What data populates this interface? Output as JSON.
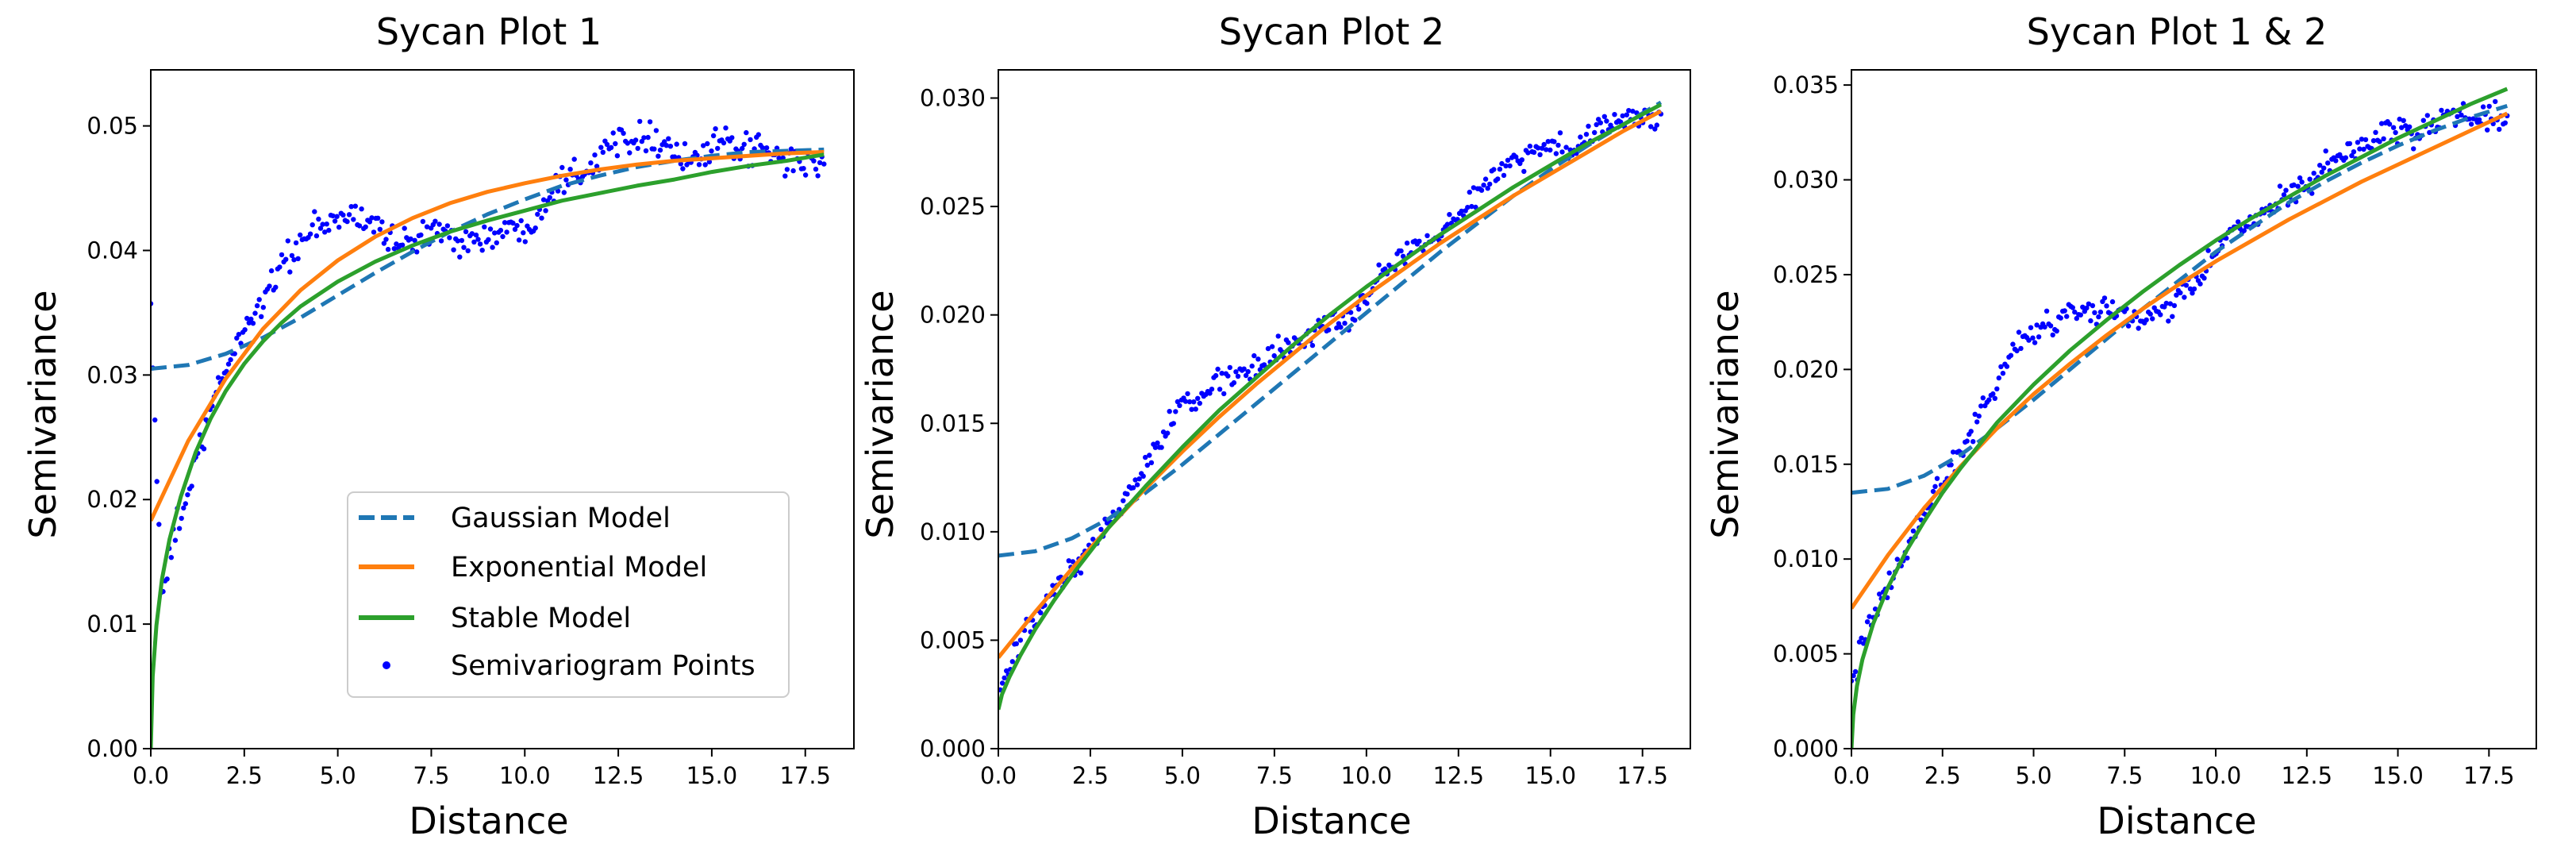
{
  "chart_data": [
    {
      "type": "line",
      "title": "Sycan Plot 1",
      "xlabel": "Distance",
      "ylabel": "Semivariance",
      "xlim": [
        0,
        18.8
      ],
      "ylim": [
        0,
        0.0545
      ],
      "xticks": [
        "0.0",
        "2.5",
        "5.0",
        "7.5",
        "10.0",
        "12.5",
        "15.0",
        "17.5"
      ],
      "xtick_values": [
        0,
        2.5,
        5,
        7.5,
        10,
        12.5,
        15,
        17.5
      ],
      "yticks": [
        "0.00",
        "0.01",
        "0.02",
        "0.03",
        "0.04",
        "0.05"
      ],
      "ytick_values": [
        0,
        0.01,
        0.02,
        0.03,
        0.04,
        0.05
      ],
      "grid": false,
      "legend": {
        "placement": "lower-right",
        "entries": [
          {
            "label": "Gaussian Model",
            "series": "gaussian",
            "style": "dashed",
            "color": "#1f77b4"
          },
          {
            "label": "Exponential Model",
            "series": "exponential",
            "style": "solid",
            "color": "#ff7f0e"
          },
          {
            "label": "Stable Model",
            "series": "stable",
            "style": "solid",
            "color": "#2ca02c"
          },
          {
            "label": "Semivariogram Points",
            "series": "points",
            "style": "dots",
            "color": "#0000ff"
          }
        ]
      },
      "series": [
        {
          "key": "gaussian",
          "name": "Gaussian Model",
          "style": "dashed",
          "color": "#1f77b4",
          "x": [
            0,
            1,
            2,
            3,
            4,
            5,
            6,
            7,
            8,
            9,
            10,
            11,
            12,
            13,
            14,
            15,
            16,
            17,
            18
          ],
          "y": [
            0.0305,
            0.0308,
            0.0317,
            0.033,
            0.0346,
            0.0364,
            0.0382,
            0.0399,
            0.0415,
            0.0429,
            0.0441,
            0.0452,
            0.046,
            0.0467,
            0.0472,
            0.0476,
            0.0479,
            0.048,
            0.0481
          ]
        },
        {
          "key": "exponential",
          "name": "Exponential Model",
          "style": "solid",
          "color": "#ff7f0e",
          "x": [
            0,
            1,
            2,
            3,
            4,
            5,
            6,
            7,
            8,
            9,
            10,
            11,
            12,
            13,
            14,
            15,
            16,
            17,
            18
          ],
          "y": [
            0.0183,
            0.0247,
            0.0297,
            0.0337,
            0.0368,
            0.0392,
            0.0411,
            0.0426,
            0.0438,
            0.0447,
            0.0454,
            0.046,
            0.0465,
            0.0469,
            0.0472,
            0.0474,
            0.0476,
            0.0478,
            0.0479
          ]
        },
        {
          "key": "stable",
          "name": "Stable Model",
          "style": "solid",
          "color": "#2ca02c",
          "x": [
            0,
            0.05,
            0.15,
            0.3,
            0.5,
            0.8,
            1.2,
            1.6,
            2,
            2.5,
            3,
            3.5,
            4,
            5,
            6,
            7,
            8,
            9,
            10,
            11,
            12,
            13,
            14,
            15,
            16,
            17,
            18
          ],
          "y": [
            0,
            0.0058,
            0.0099,
            0.0136,
            0.0168,
            0.0202,
            0.0238,
            0.0265,
            0.0287,
            0.0309,
            0.0327,
            0.0342,
            0.0355,
            0.0375,
            0.0391,
            0.0404,
            0.0415,
            0.0424,
            0.0432,
            0.044,
            0.0446,
            0.0452,
            0.0457,
            0.0463,
            0.0468,
            0.0472,
            0.0477
          ]
        },
        {
          "key": "points",
          "name": "Semivariogram Points",
          "style": "dots",
          "color": "#0000ff",
          "anchors_x": [
            0,
            0.3,
            0.6,
            1,
            1.5,
            2,
            2.5,
            3,
            3.5,
            4,
            4.5,
            5,
            5.5,
            6,
            6.5,
            7,
            7.5,
            8,
            8.5,
            9,
            9.5,
            10,
            10.5,
            11,
            11.5,
            12,
            12.5,
            13,
            13.5,
            14,
            14.5,
            15,
            15.5,
            16,
            16.5,
            17,
            17.5,
            18
          ],
          "anchors_y": [
            0.0355,
            0.011,
            0.017,
            0.0205,
            0.026,
            0.0305,
            0.0338,
            0.036,
            0.039,
            0.0405,
            0.0418,
            0.0425,
            0.0428,
            0.042,
            0.041,
            0.0405,
            0.0415,
            0.0413,
            0.0408,
            0.041,
            0.0415,
            0.0418,
            0.0438,
            0.046,
            0.0465,
            0.0475,
            0.049,
            0.0495,
            0.049,
            0.048,
            0.047,
            0.0482,
            0.0485,
            0.048,
            0.0478,
            0.047,
            0.0472,
            0.0465
          ],
          "count": 330,
          "spread": 0.0011
        }
      ]
    },
    {
      "type": "line",
      "title": "Sycan Plot 2",
      "xlabel": "Distance",
      "ylabel": "Semivariance",
      "xlim": [
        0,
        18.8
      ],
      "ylim": [
        0,
        0.0313
      ],
      "xticks": [
        "0.0",
        "2.5",
        "5.0",
        "7.5",
        "10.0",
        "12.5",
        "15.0",
        "17.5"
      ],
      "xtick_values": [
        0,
        2.5,
        5,
        7.5,
        10,
        12.5,
        15,
        17.5
      ],
      "yticks": [
        "0.000",
        "0.005",
        "0.010",
        "0.015",
        "0.020",
        "0.025",
        "0.030"
      ],
      "ytick_values": [
        0,
        0.005,
        0.01,
        0.015,
        0.02,
        0.025,
        0.03
      ],
      "grid": false,
      "series": [
        {
          "key": "gaussian",
          "name": "Gaussian Model",
          "style": "dashed",
          "color": "#1f77b4",
          "x": [
            0,
            1,
            2,
            3,
            4,
            5,
            6,
            7,
            8,
            9,
            10,
            11,
            12,
            13,
            14,
            15,
            16,
            17,
            18
          ],
          "y": [
            0.0089,
            0.0091,
            0.0097,
            0.0106,
            0.0118,
            0.0131,
            0.0145,
            0.0159,
            0.0173,
            0.0187,
            0.0201,
            0.0215,
            0.0229,
            0.0242,
            0.0255,
            0.0267,
            0.0278,
            0.0288,
            0.0298
          ]
        },
        {
          "key": "exponential",
          "name": "Exponential Model",
          "style": "solid",
          "color": "#ff7f0e",
          "x": [
            0,
            1,
            2,
            3,
            4,
            5,
            6,
            7,
            8,
            9,
            10,
            11,
            12,
            13,
            14,
            15,
            16,
            17,
            18
          ],
          "y": [
            0.0042,
            0.0063,
            0.0083,
            0.0102,
            0.012,
            0.0137,
            0.0153,
            0.0168,
            0.0182,
            0.0196,
            0.0209,
            0.0221,
            0.0233,
            0.0244,
            0.0255,
            0.0265,
            0.0275,
            0.0285,
            0.0294
          ]
        },
        {
          "key": "stable",
          "name": "Stable Model",
          "style": "solid",
          "color": "#2ca02c",
          "x": [
            0,
            0.1,
            0.3,
            0.6,
            1,
            1.5,
            2,
            3,
            4,
            5,
            6,
            7,
            8,
            9,
            10,
            11,
            12,
            13,
            14,
            15,
            16,
            17,
            18
          ],
          "y": [
            0.0018,
            0.0025,
            0.0033,
            0.0043,
            0.0055,
            0.0068,
            0.008,
            0.0102,
            0.0121,
            0.0139,
            0.0156,
            0.0171,
            0.0186,
            0.02,
            0.0213,
            0.0225,
            0.0237,
            0.0248,
            0.0259,
            0.0269,
            0.0279,
            0.0288,
            0.0297
          ]
        },
        {
          "key": "points",
          "name": "Semivariogram Points",
          "style": "dots",
          "color": "#0000ff",
          "anchors_x": [
            0,
            0.5,
            1,
            1.5,
            2,
            2.5,
            3,
            3.5,
            4,
            4.5,
            5,
            5.5,
            6,
            6.5,
            7,
            7.5,
            8,
            8.5,
            9,
            9.5,
            10,
            10.5,
            11,
            11.5,
            12,
            12.5,
            13,
            13.5,
            14,
            14.5,
            15,
            15.5,
            16,
            16.5,
            17,
            17.5,
            18
          ],
          "anchors_y": [
            0.0025,
            0.0045,
            0.006,
            0.0072,
            0.0082,
            0.009,
            0.0105,
            0.0117,
            0.013,
            0.0145,
            0.0158,
            0.0163,
            0.017,
            0.0172,
            0.0176,
            0.0182,
            0.0185,
            0.0192,
            0.0196,
            0.0198,
            0.0208,
            0.022,
            0.0228,
            0.0232,
            0.0238,
            0.0247,
            0.0255,
            0.0265,
            0.0272,
            0.0275,
            0.0278,
            0.0276,
            0.0283,
            0.0288,
            0.029,
            0.0292,
            0.0289
          ],
          "count": 330,
          "spread": 0.0005
        }
      ]
    },
    {
      "type": "line",
      "title": "Sycan Plot 1 & 2",
      "xlabel": "Distance",
      "ylabel": "Semivariance",
      "xlim": [
        0,
        18.8
      ],
      "ylim": [
        0,
        0.0358
      ],
      "xticks": [
        "0.0",
        "2.5",
        "5.0",
        "7.5",
        "10.0",
        "12.5",
        "15.0",
        "17.5"
      ],
      "xtick_values": [
        0,
        2.5,
        5,
        7.5,
        10,
        12.5,
        15,
        17.5
      ],
      "yticks": [
        "0.000",
        "0.005",
        "0.010",
        "0.015",
        "0.020",
        "0.025",
        "0.030",
        "0.035"
      ],
      "ytick_values": [
        0,
        0.005,
        0.01,
        0.015,
        0.02,
        0.025,
        0.03,
        0.035
      ],
      "grid": false,
      "series": [
        {
          "key": "gaussian",
          "name": "Gaussian Model",
          "style": "dashed",
          "color": "#1f77b4",
          "x": [
            0,
            1,
            2,
            3,
            4,
            5,
            6,
            7,
            8,
            9,
            10,
            11,
            12,
            13,
            14,
            15,
            16,
            17,
            18
          ],
          "y": [
            0.0135,
            0.0137,
            0.0144,
            0.0155,
            0.0169,
            0.0184,
            0.02,
            0.0216,
            0.0232,
            0.0247,
            0.0262,
            0.0275,
            0.0288,
            0.0299,
            0.0309,
            0.0318,
            0.0326,
            0.0333,
            0.0339
          ]
        },
        {
          "key": "exponential",
          "name": "Exponential Model",
          "style": "solid",
          "color": "#ff7f0e",
          "x": [
            0,
            1,
            2,
            3,
            4,
            5,
            6,
            7,
            8,
            9,
            10,
            11,
            12,
            13,
            14,
            15,
            16,
            17,
            18
          ],
          "y": [
            0.0074,
            0.0102,
            0.0127,
            0.0149,
            0.0169,
            0.0187,
            0.0203,
            0.0218,
            0.0232,
            0.0245,
            0.0257,
            0.0268,
            0.0279,
            0.0289,
            0.0299,
            0.0308,
            0.0317,
            0.0326,
            0.0335
          ]
        },
        {
          "key": "stable",
          "name": "Stable Model",
          "style": "solid",
          "color": "#2ca02c",
          "x": [
            0,
            0.05,
            0.15,
            0.3,
            0.6,
            1,
            1.5,
            2,
            2.5,
            3,
            4,
            5,
            6,
            7,
            8,
            9,
            10,
            11,
            12,
            13,
            14,
            15,
            16,
            17,
            18
          ],
          "y": [
            0,
            0.0018,
            0.0033,
            0.0047,
            0.0066,
            0.0085,
            0.0104,
            0.012,
            0.0135,
            0.0148,
            0.0172,
            0.0192,
            0.021,
            0.0226,
            0.0241,
            0.0255,
            0.0268,
            0.028,
            0.0291,
            0.0302,
            0.0312,
            0.0322,
            0.0331,
            0.034,
            0.0348
          ]
        },
        {
          "key": "points",
          "name": "Semivariogram Points",
          "style": "dots",
          "color": "#0000ff",
          "anchors_x": [
            0,
            0.5,
            1,
            1.5,
            2,
            2.5,
            3,
            3.5,
            4,
            4.5,
            5,
            5.5,
            6,
            6.5,
            7,
            7.5,
            8,
            8.5,
            9,
            9.5,
            10,
            10.5,
            11,
            11.5,
            12,
            12.5,
            13,
            13.5,
            14,
            14.5,
            15,
            15.5,
            16,
            16.5,
            17,
            17.5,
            18
          ],
          "anchors_y": [
            0.0035,
            0.0065,
            0.0085,
            0.0105,
            0.0125,
            0.0142,
            0.0158,
            0.0175,
            0.0195,
            0.021,
            0.022,
            0.0225,
            0.023,
            0.0232,
            0.0233,
            0.0228,
            0.0226,
            0.023,
            0.0237,
            0.0245,
            0.0262,
            0.0272,
            0.028,
            0.0286,
            0.029,
            0.0298,
            0.0305,
            0.0312,
            0.0318,
            0.0322,
            0.0325,
            0.0325,
            0.033,
            0.0335,
            0.0332,
            0.0334,
            0.0331
          ],
          "count": 330,
          "spread": 0.0006
        }
      ]
    }
  ]
}
